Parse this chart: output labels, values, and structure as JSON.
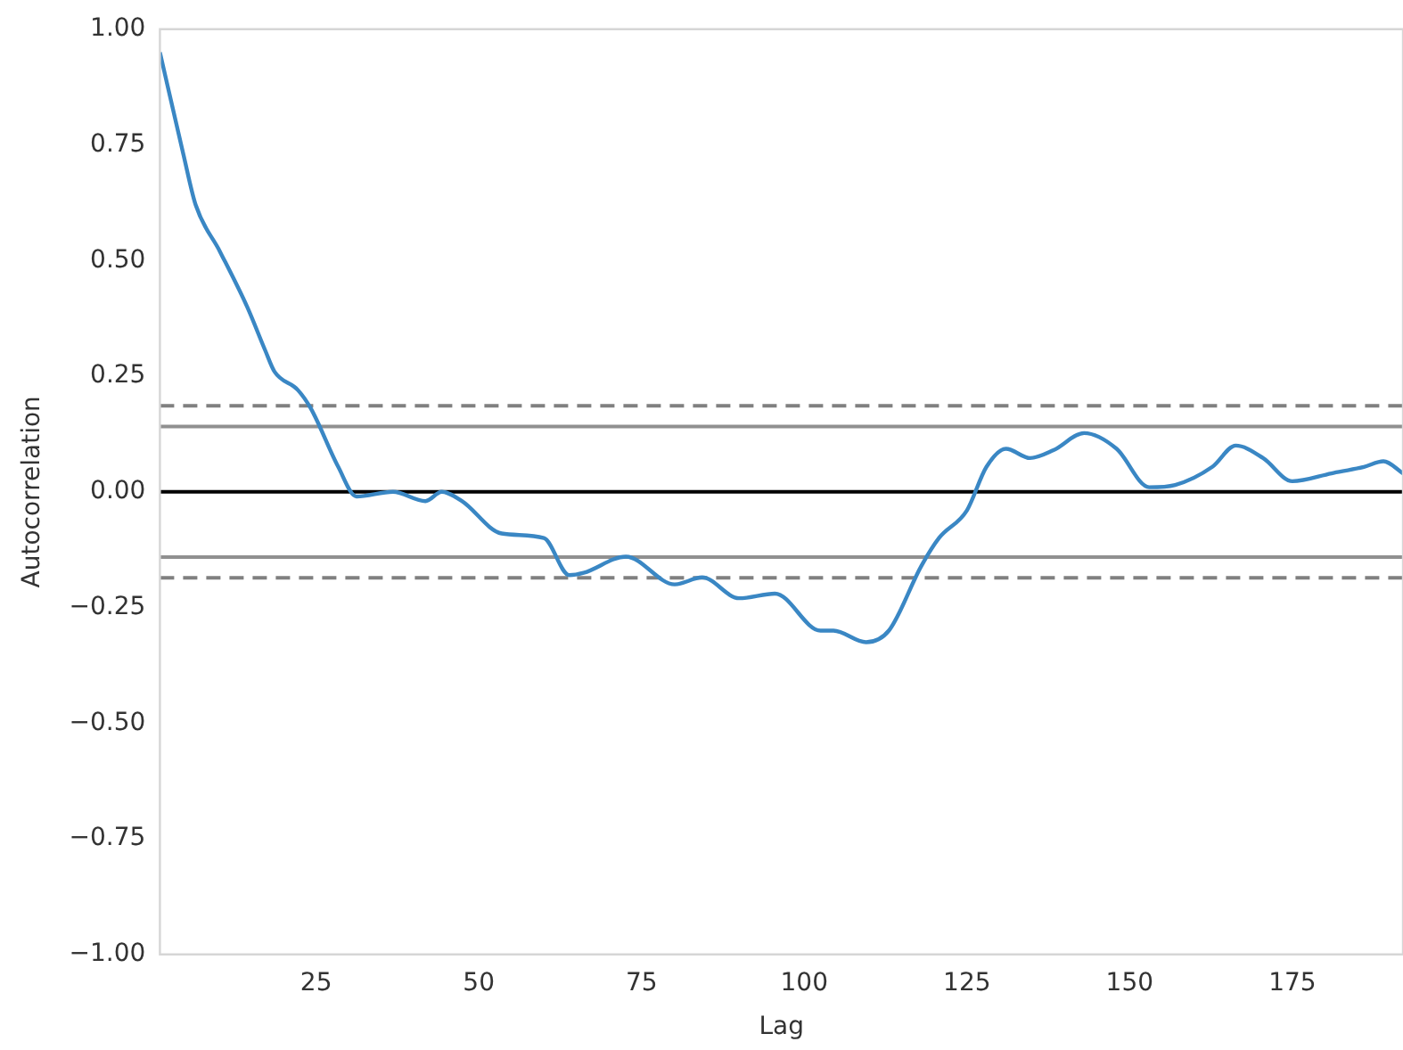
{
  "chart_data": {
    "type": "line",
    "xlabel": "Lag",
    "ylabel": "Autocorrelation",
    "x": [
      1,
      4.6,
      6.5,
      10.2,
      14.4,
      17.2,
      18.6,
      22.2,
      24.2,
      28.4,
      31.2,
      36.8,
      41.8,
      44.3,
      47.4,
      53.5,
      60,
      63.9,
      66.1,
      72.6,
      80.1,
      84.3,
      90,
      95.5,
      102.5,
      104.5,
      109.5,
      113,
      118,
      120.7,
      125,
      128,
      131,
      134.7,
      138.3,
      143,
      148,
      153,
      157,
      162.7,
      166.3,
      170.5,
      175,
      181,
      186,
      189,
      192
    ],
    "series": [
      {
        "color": "#3a87c4",
        "values": [
          0.95,
          0.73,
          0.62,
          0.52,
          0.4,
          0.305,
          0.26,
          0.22,
          0.18,
          0.054,
          -0.01,
          0.0,
          -0.02,
          0.0,
          -0.02,
          -0.09,
          -0.1,
          -0.18,
          -0.175,
          -0.14,
          -0.2,
          -0.185,
          -0.23,
          -0.22,
          -0.3,
          -0.3,
          -0.325,
          -0.3,
          -0.16,
          -0.1,
          -0.04,
          0.054,
          0.093,
          0.073,
          0.09,
          0.127,
          0.093,
          0.01,
          0.015,
          0.054,
          0.1,
          0.073,
          0.023,
          0.04,
          0.054,
          0.066,
          0.04
        ]
      }
    ],
    "xlim": [
      1,
      192
    ],
    "xticks": [
      25,
      50,
      75,
      100,
      125,
      150,
      175
    ],
    "ylim": [
      -1,
      1
    ],
    "yticks": [
      {
        "value": -1,
        "label": "−1.00"
      },
      {
        "value": -0.75,
        "label": "−0.75"
      },
      {
        "value": -0.5,
        "label": "−0.50"
      },
      {
        "value": -0.25,
        "label": "−0.25"
      },
      {
        "value": 0,
        "label": "0.00"
      },
      {
        "value": 0.25,
        "label": "0.25"
      },
      {
        "value": 0.5,
        "label": "0.50"
      },
      {
        "value": 0.75,
        "label": "0.75"
      },
      {
        "value": 1,
        "label": "1.00"
      }
    ],
    "ref_lines": [
      {
        "axis": "y",
        "value": 0,
        "color": "#000000",
        "line_style": "solid"
      },
      {
        "axis": "y",
        "value": 0.141,
        "color": "#909090",
        "line_style": "solid"
      },
      {
        "axis": "y",
        "value": -0.141,
        "color": "#909090",
        "line_style": "solid"
      },
      {
        "axis": "y",
        "value": 0.186,
        "color": "#808080",
        "line_style": "dashed"
      },
      {
        "axis": "y",
        "value": -0.186,
        "color": "#808080",
        "line_style": "dashed"
      }
    ],
    "grid": false,
    "legend": false,
    "marker": "none",
    "line_style": "solid"
  }
}
